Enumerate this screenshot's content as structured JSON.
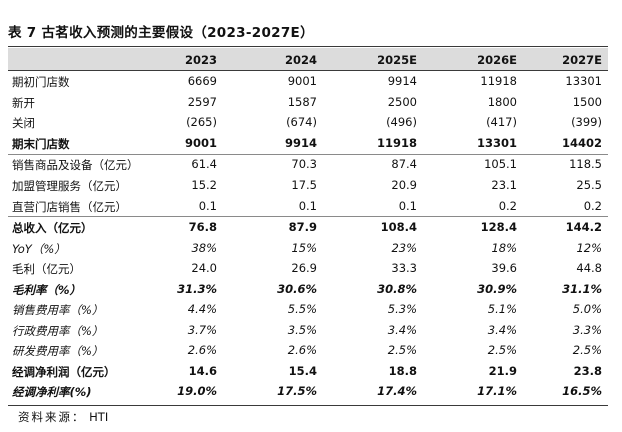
{
  "title": "表 7 古茗收入预测的主要假设（2023-2027E）",
  "columns": [
    "2023",
    "2024",
    "2025E",
    "2026E",
    "2027E"
  ],
  "rows": [
    {
      "label": "期初门店数",
      "values": [
        "6669",
        "9001",
        "9914",
        "11918",
        "13301"
      ]
    },
    {
      "label": "新开",
      "values": [
        "2597",
        "1587",
        "2500",
        "1800",
        "1500"
      ]
    },
    {
      "label": "关闭",
      "values": [
        "(265)",
        "(674)",
        "(496)",
        "(417)",
        "(399)"
      ]
    },
    {
      "label": "期末门店数",
      "values": [
        "9001",
        "9914",
        "11918",
        "13301",
        "14402"
      ]
    },
    {
      "label": "销售商品及设备（亿元）",
      "values": [
        "61.4",
        "70.3",
        "87.4",
        "105.1",
        "118.5"
      ]
    },
    {
      "label": "加盟管理服务（亿元）",
      "values": [
        "15.2",
        "17.5",
        "20.9",
        "23.1",
        "25.5"
      ]
    },
    {
      "label": "直营门店销售（亿元）",
      "values": [
        "0.1",
        "0.1",
        "0.1",
        "0.2",
        "0.2"
      ]
    },
    {
      "label": "总收入（亿元）",
      "values": [
        "76.8",
        "87.9",
        "108.4",
        "128.4",
        "144.2"
      ]
    },
    {
      "label": "YoY（%）",
      "values": [
        "38%",
        "15%",
        "23%",
        "18%",
        "12%"
      ]
    },
    {
      "label": "毛利（亿元）",
      "values": [
        "24.0",
        "26.9",
        "33.3",
        "39.6",
        "44.8"
      ]
    },
    {
      "label": "毛利率（%）",
      "values": [
        "31.3%",
        "30.6%",
        "30.8%",
        "30.9%",
        "31.1%"
      ]
    },
    {
      "label": "销售费用率（%）",
      "values": [
        "4.4%",
        "5.5%",
        "5.3%",
        "5.1%",
        "5.0%"
      ]
    },
    {
      "label": "行政费用率（%）",
      "values": [
        "3.7%",
        "3.5%",
        "3.4%",
        "3.4%",
        "3.3%"
      ]
    },
    {
      "label": "研发费用率（%）",
      "values": [
        "2.6%",
        "2.6%",
        "2.5%",
        "2.5%",
        "2.5%"
      ]
    },
    {
      "label": "经调净利润（亿元）",
      "values": [
        "14.6",
        "15.4",
        "18.8",
        "21.9",
        "23.8"
      ]
    },
    {
      "label": "经调净利率(%)",
      "values": [
        "19.0%",
        "17.5%",
        "17.4%",
        "17.1%",
        "16.5%"
      ]
    }
  ],
  "source": {
    "label": "资料来源：",
    "value": "HTI"
  }
}
